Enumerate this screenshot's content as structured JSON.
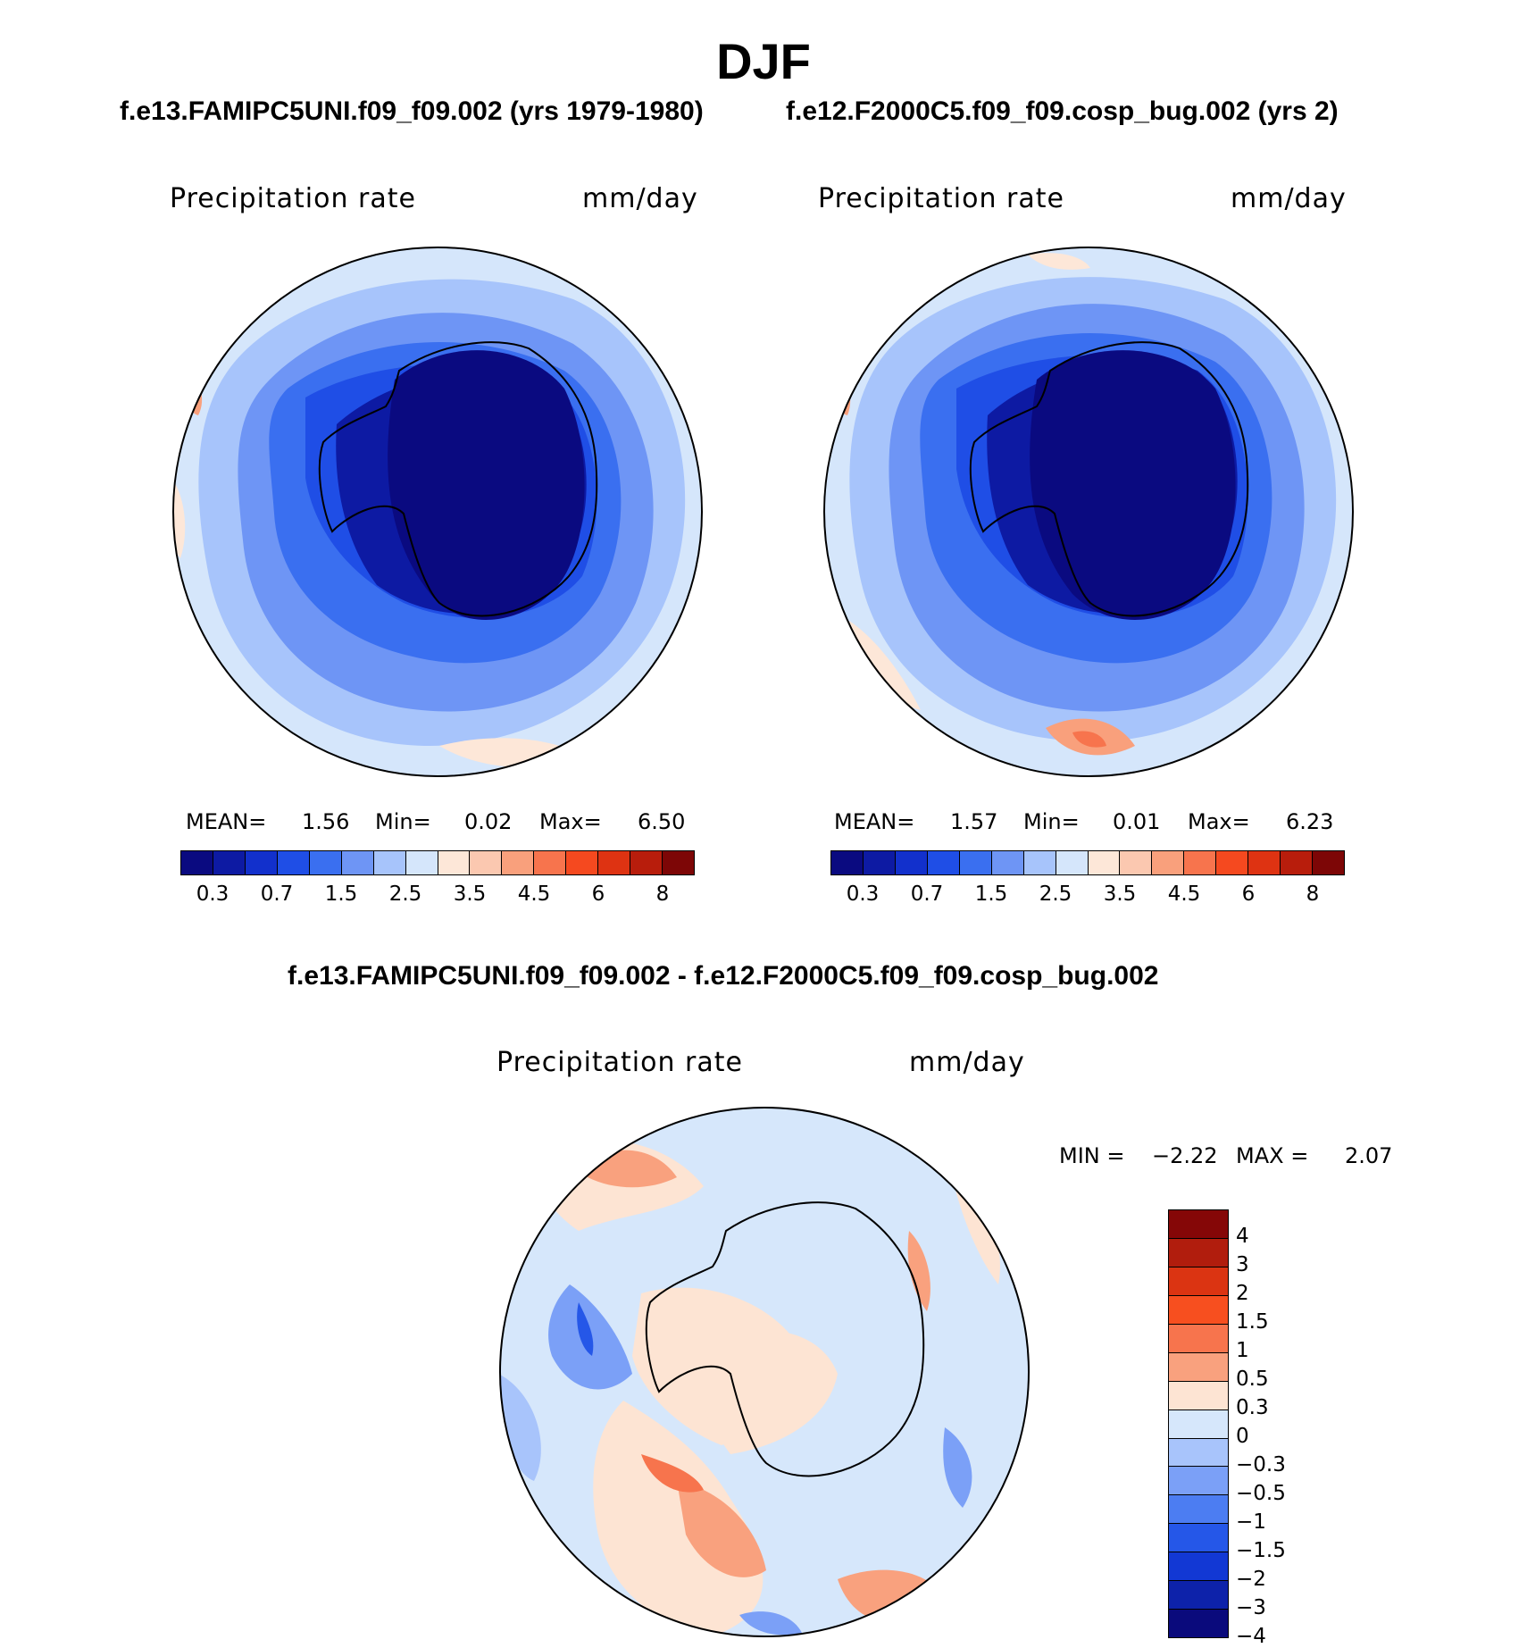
{
  "title": "DJF",
  "subtitle_left": "f.e13.FAMIPC5UNI.f09_f09.002 (yrs 1979-1980)",
  "subtitle_right": "f.e12.F2000C5.f09_f09.cosp_bug.002 (yrs 2)",
  "diff_title": "f.e13.FAMIPC5UNI.f09_f09.002 - f.e12.F2000C5.f09_f09.cosp_bug.002",
  "panels": [
    {
      "variable": "Precipitation  rate",
      "units": "mm/day",
      "mean_label": "MEAN=",
      "mean": "1.56",
      "min_label": "Min=",
      "min": "0.02",
      "max_label": "Max=",
      "max": "6.50"
    },
    {
      "variable": "Precipitation  rate",
      "units": "mm/day",
      "mean_label": "MEAN=",
      "mean": "1.57",
      "min_label": "Min=",
      "min": "0.01",
      "max_label": "Max=",
      "max": "6.23"
    },
    {
      "variable": "Precipitation  rate",
      "units": "mm/day",
      "min_label": "MIN =",
      "min": "−2.22",
      "max_label": "MAX =",
      "max": "2.07"
    }
  ],
  "colorbar_abs": {
    "colors": [
      "#0a0a80",
      "#0d1aa3",
      "#1230cc",
      "#1f4ee6",
      "#3a6ff0",
      "#6e95f5",
      "#a7c4fb",
      "#d5e6fb",
      "#fde7d8",
      "#fbc8b0",
      "#f9a07c",
      "#f7744d",
      "#f5491f",
      "#de3312",
      "#b81d0c",
      "#7d0606"
    ],
    "tick_labels": [
      "0.3",
      "0.7",
      "1.5",
      "2.5",
      "3.5",
      "4.5",
      "6",
      "8"
    ]
  },
  "colorbar_diff": {
    "colors": [
      "#850707",
      "#b11d0d",
      "#db3412",
      "#f74f1f",
      "#f7744d",
      "#f9a17e",
      "#fde4d3",
      "#d6e7fb",
      "#a8c4fb",
      "#7ba0f7",
      "#4c7df2",
      "#2557e8",
      "#1238d4",
      "#0d22aa",
      "#0a0a7c"
    ],
    "tick_labels": [
      "4",
      "3",
      "2",
      "1.5",
      "1",
      "0.5",
      "0.3",
      "0",
      "−0.3",
      "−0.5",
      "−1",
      "−1.5",
      "−2",
      "−3",
      "−4"
    ]
  }
}
